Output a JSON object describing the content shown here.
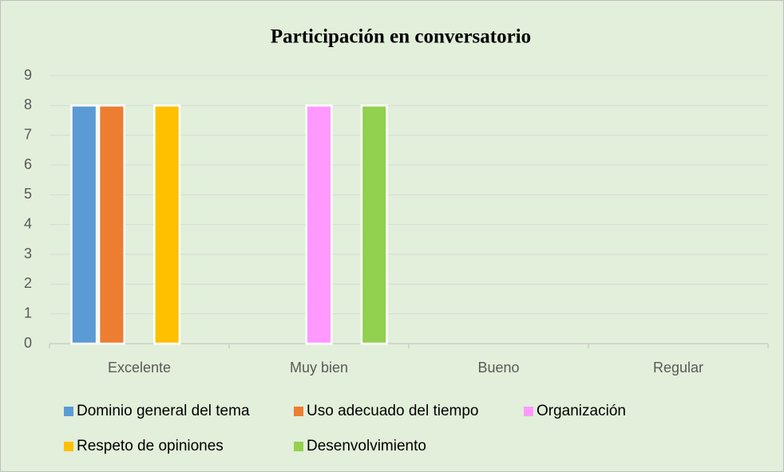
{
  "chart_data": {
    "type": "bar",
    "title": "Participación en conversatorio",
    "categories": [
      "Excelente",
      "Muy bien",
      "Bueno",
      "Regular"
    ],
    "series": [
      {
        "name": "Dominio general del tema",
        "color": "#5b9bd5",
        "values": [
          8,
          null,
          null,
          null
        ]
      },
      {
        "name": "Uso adecuado del tiempo",
        "color": "#ed7d31",
        "values": [
          8,
          null,
          null,
          null
        ]
      },
      {
        "name": "Organización",
        "color": "#ff99ff",
        "values": [
          null,
          8,
          null,
          null
        ]
      },
      {
        "name": "Respeto de opiniones",
        "color": "#ffc000",
        "values": [
          8,
          null,
          null,
          null
        ]
      },
      {
        "name": "Desenvolvimiento",
        "color": "#92d050",
        "values": [
          null,
          8,
          null,
          null
        ]
      }
    ],
    "ylim": [
      0,
      9
    ],
    "yticks": [
      0,
      1,
      2,
      3,
      4,
      5,
      6,
      7,
      8,
      9
    ],
    "grid": true,
    "legend": "bottom"
  }
}
